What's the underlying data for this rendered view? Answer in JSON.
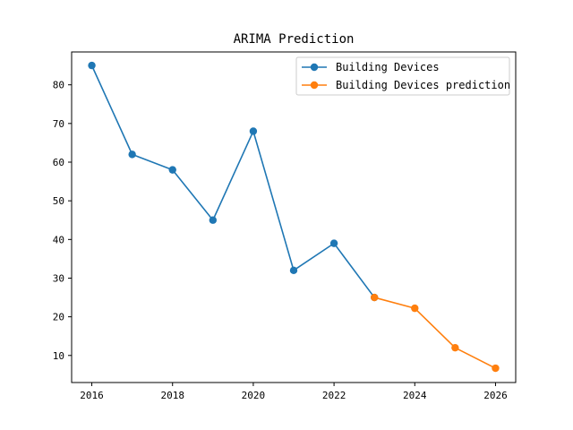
{
  "chart_data": {
    "type": "line",
    "title": "ARIMA Prediction",
    "xlabel": "",
    "ylabel": "",
    "xlim": [
      2015.5,
      2026.5
    ],
    "ylim": [
      3,
      88.5
    ],
    "x_ticks": [
      2016,
      2018,
      2020,
      2022,
      2024,
      2026
    ],
    "y_ticks": [
      10,
      20,
      30,
      40,
      50,
      60,
      70,
      80
    ],
    "grid": false,
    "legend_position": "top-right",
    "series": [
      {
        "name": "Building Devices",
        "color": "#1f77b4",
        "x": [
          2016,
          2017,
          2018,
          2019,
          2020,
          2021,
          2022,
          2023
        ],
        "y": [
          85,
          62,
          58,
          45,
          68,
          32,
          39,
          25
        ]
      },
      {
        "name": "Building Devices prediction",
        "color": "#ff7f0e",
        "x": [
          2023,
          2024,
          2025,
          2026
        ],
        "y": [
          25,
          22.2,
          12,
          6.7
        ]
      }
    ]
  }
}
